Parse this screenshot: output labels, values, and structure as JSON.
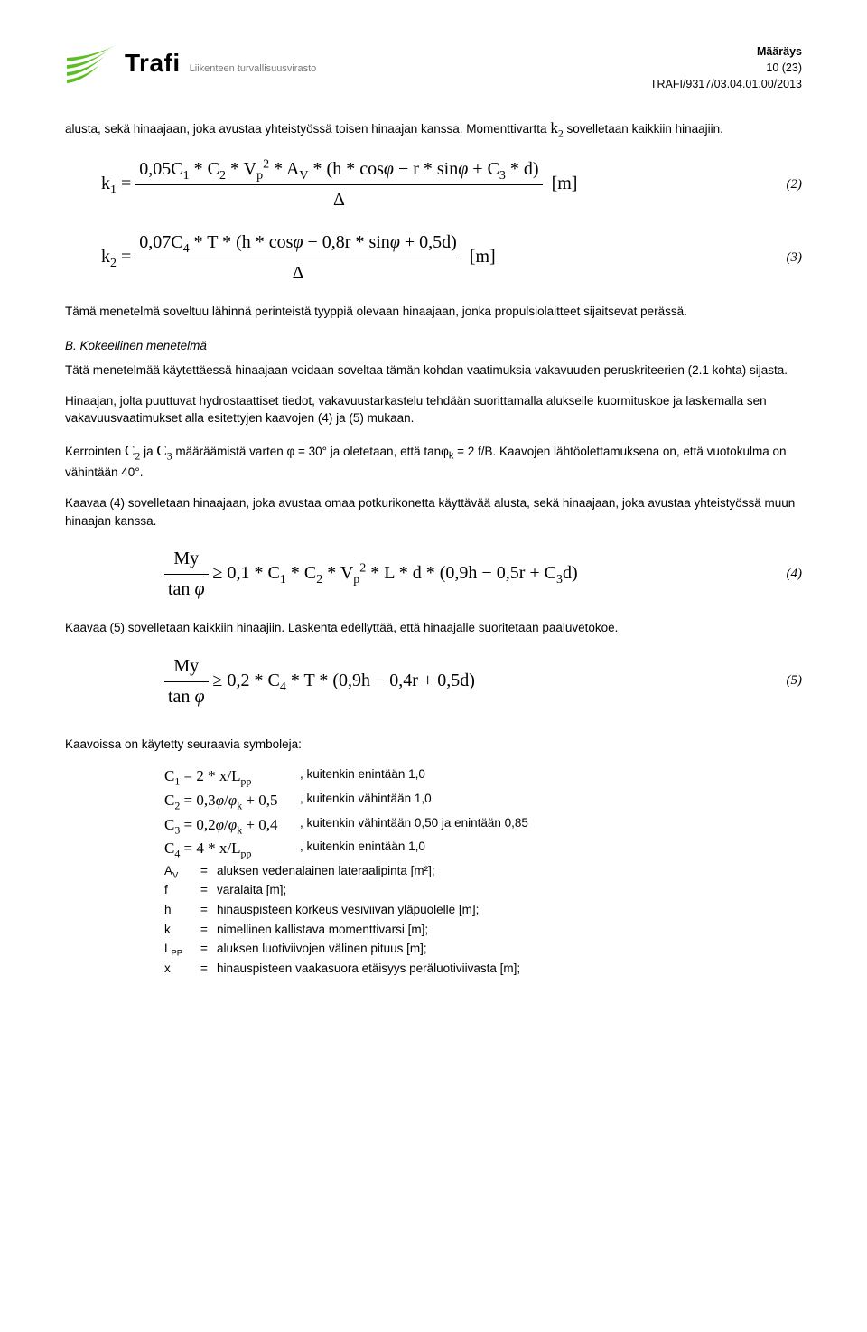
{
  "header": {
    "brand_name": "Trafi",
    "brand_sub": "Liikenteen turvallisuusvirasto",
    "doc_type": "Määräys",
    "page_info": "10 (23)",
    "doc_ref": "TRAFI/9317/03.04.01.00/2013",
    "logo_color": "#5bbf21"
  },
  "body": {
    "p1a": "alusta, sekä hinaajaan, joka avustaa yhteistyössä toisen hinaajan kanssa. Momenttivartta ",
    "p1b": " sovelletaan kaikkiin hinaajiin.",
    "k2_sym": "k",
    "eq2_num": "(2)",
    "eq3_num": "(3)",
    "eq4_num": "(4)",
    "eq5_num": "(5)",
    "p2": "Tämä menetelmä soveltuu lähinnä perinteistä tyyppiä olevaan hinaajaan, jonka propulsiolaitteet sijaitsevat perässä.",
    "hB": "B. Kokeellinen menetelmä",
    "p3": "Tätä menetelmää käytettäessä hinaajaan voidaan soveltaa tämän kohdan vaatimuksia vakavuuden peruskriteerien (2.1 kohta) sijasta.",
    "p4": "Hinaajan, jolta puuttuvat hydrostaattiset tiedot, vakavuustarkastelu tehdään suorittamalla alukselle kuormituskoe ja laskemalla sen vakavuusvaatimukset alla esitettyjen kaavojen (4) ja (5) mukaan.",
    "p5a": "Kerrointen ",
    "p5b": " ja ",
    "p5c": " määräämistä varten φ = 30° ja oletetaan, että tanφ",
    "p5c2": " = 2 f/B. Kaavojen lähtöolettamuksena on, että vuotokulma on vähintään 40°.",
    "p6": "Kaavaa (4) sovelletaan hinaajaan, joka avustaa omaa potkurikonetta käyttävää alusta, sekä hinaajaan, joka avustaa yhteistyössä muun hinaajan kanssa.",
    "p7": "Kaavaa (5) sovelletaan kaikkiin hinaajiin. Laskenta edellyttää, että hinaajalle suoritetaan paaluvetokoe.",
    "sym_intro": "Kaavoissa on käytetty seuraavia symboleja:",
    "c1_desc": ", kuitenkin enintään 1,0",
    "c2_desc": ", kuitenkin vähintään 1,0",
    "c3_desc": ", kuitenkin vähintään 0,50 ja enintään 0,85",
    "c4_desc": ", kuitenkin enintään 1,0",
    "defs": [
      {
        "s": "A",
        "sub": "V",
        "d": "aluksen vedenalainen lateraalipinta [m²];"
      },
      {
        "s": "f",
        "sub": "",
        "d": "varalaita [m];"
      },
      {
        "s": "h",
        "sub": "",
        "d": "hinauspisteen korkeus vesiviivan yläpuolelle [m];"
      },
      {
        "s": "k",
        "sub": "",
        "d": "nimellinen kallistava momenttivarsi [m];"
      },
      {
        "s": "L",
        "sub": "PP",
        "d": "aluksen luotiviivojen välinen pituus [m];"
      },
      {
        "s": "x",
        "sub": "",
        "d": "hinauspisteen vaakasuora etäisyys peräluotiviivasta [m];"
      }
    ]
  }
}
